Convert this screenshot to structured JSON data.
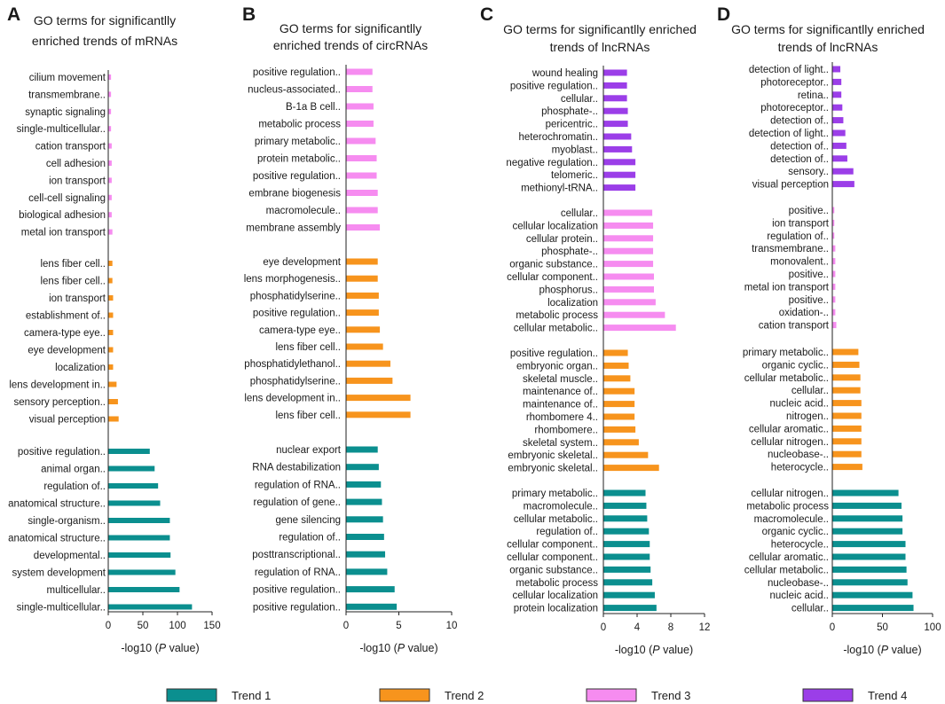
{
  "figure": {
    "legend": [
      {
        "name": "Trend 1",
        "color": "#0b8f8f"
      },
      {
        "name": "Trend 2",
        "color": "#f7941d"
      },
      {
        "name": "Trend 3",
        "color": "#f68cf0"
      },
      {
        "name": "Trend 4",
        "color": "#9b3ee8"
      }
    ]
  },
  "chart_data": [
    {
      "type": "bar",
      "orientation": "horizontal",
      "panel_label": "A",
      "title": [
        "GO terms for significantlly",
        "enriched trends of mRNAs"
      ],
      "xlabel_prefix": "-log10 (",
      "xlabel_italic": "P",
      "xlabel_suffix": " value)",
      "xlim": [
        0,
        150
      ],
      "xticks": [
        0,
        50,
        100,
        150
      ],
      "groups": [
        {
          "trend": "Trend 3",
          "color": "#f68cf0",
          "categories": [
            "cilium movement",
            "transmembrane..",
            "synaptic signaling",
            "single-multicellular..",
            "cation transport",
            "cell adhesion",
            "ion transport",
            "cell-cell signaling",
            "biological adhesion",
            "metal ion transport"
          ],
          "values": [
            4,
            4,
            4,
            4,
            5,
            5,
            5,
            5,
            5,
            6
          ]
        },
        {
          "trend": "Trend 2",
          "color": "#f7941d",
          "categories": [
            "lens fiber cell..",
            "lens fiber cell..",
            "ion transport",
            "establishment of..",
            "camera-type eye..",
            "eye development",
            "localization",
            "lens development in..",
            "sensory perception..",
            "visual perception"
          ],
          "values": [
            6,
            6,
            7,
            7,
            7,
            7,
            7,
            12,
            14,
            15
          ]
        },
        {
          "trend": "Trend 1",
          "color": "#0b8f8f",
          "categories": [
            "positive regulation..",
            "animal organ..",
            "regulation of..",
            "anatomical structure..",
            "single-organism..",
            "anatomical structure..",
            "developmental..",
            "system development",
            "multicellular..",
            "single-multicellular.."
          ],
          "values": [
            60,
            67,
            72,
            75,
            89,
            89,
            90,
            97,
            103,
            121
          ]
        }
      ]
    },
    {
      "type": "bar",
      "orientation": "horizontal",
      "panel_label": "B",
      "title": [
        "GO terms for significantlly",
        "enriched trends of circRNAs"
      ],
      "xlabel_prefix": "-log10 (",
      "xlabel_italic": "P",
      "xlabel_suffix": " value)",
      "xlim": [
        0,
        10
      ],
      "xticks": [
        0,
        5,
        10
      ],
      "groups": [
        {
          "trend": "Trend 3",
          "color": "#f68cf0",
          "categories": [
            "positive regulation..",
            "nucleus-associated..",
            "B-1a B cell..",
            "metabolic process",
            "primary metabolic..",
            "protein metabolic..",
            "positive regulation..",
            "embrane biogenesis",
            "macromolecule..",
            "membrane assembly"
          ],
          "values": [
            2.5,
            2.5,
            2.6,
            2.6,
            2.8,
            2.9,
            2.9,
            3.0,
            3.0,
            3.2
          ]
        },
        {
          "trend": "Trend 2",
          "color": "#f7941d",
          "categories": [
            "eye development",
            "lens morphogenesis..",
            "phosphatidylserine..",
            "positive regulation..",
            "camera-type eye..",
            "lens fiber cell..",
            "phosphatidylethanol..",
            "phosphatidylserine..",
            "lens development in..",
            "lens fiber cell.."
          ],
          "values": [
            3.0,
            3.0,
            3.1,
            3.1,
            3.2,
            3.5,
            4.2,
            4.4,
            6.1,
            6.1
          ]
        },
        {
          "trend": "Trend 1",
          "color": "#0b8f8f",
          "categories": [
            "nuclear export",
            "RNA destabilization",
            "regulation of RNA..",
            "regulation of gene..",
            "gene silencing",
            "regulation of..",
            "posttranscriptional..",
            "regulation of RNA..",
            "positive regulation..",
            "positive regulation.."
          ],
          "values": [
            3.0,
            3.1,
            3.3,
            3.4,
            3.5,
            3.6,
            3.7,
            3.9,
            4.6,
            4.8
          ]
        }
      ]
    },
    {
      "type": "bar",
      "orientation": "horizontal",
      "panel_label": "C",
      "title": [
        "GO terms for significantlly enriched",
        "trends of lncRNAs"
      ],
      "xlabel_prefix": "-log10 (",
      "xlabel_italic": "P",
      "xlabel_suffix": " value)",
      "xlim": [
        0,
        12
      ],
      "xticks": [
        0,
        4,
        8,
        12
      ],
      "groups": [
        {
          "trend": "Trend 4",
          "color": "#9b3ee8",
          "categories": [
            "wound healing",
            "positive regulation..",
            "cellular..",
            "phosphate-..",
            "pericentric..",
            "heterochromatin..",
            "myoblast..",
            "negative regulation..",
            "telomeric..",
            "methionyl-tRNA.."
          ],
          "values": [
            2.8,
            2.8,
            2.8,
            2.9,
            2.9,
            3.3,
            3.4,
            3.8,
            3.8,
            3.8
          ]
        },
        {
          "trend": "Trend 3",
          "color": "#f68cf0",
          "categories": [
            "cellular..",
            "cellular localization",
            "cellular protein..",
            "phosphate-..",
            "organic substance..",
            "cellular component..",
            "phosphorus..",
            "localization",
            "metabolic process",
            "cellular metabolic.."
          ],
          "values": [
            5.8,
            5.9,
            5.9,
            5.9,
            5.9,
            6.0,
            6.0,
            6.2,
            7.3,
            8.6
          ]
        },
        {
          "trend": "Trend 2",
          "color": "#f7941d",
          "categories": [
            "positive regulation..",
            "embryonic organ..",
            "skeletal muscle..",
            "maintenance of..",
            "maintenance of..",
            "rhombomere 4..",
            "rhombomere..",
            "skeletal system..",
            "embryonic skeletal..",
            "embryonic skeletal.."
          ],
          "values": [
            2.9,
            3.0,
            3.2,
            3.7,
            3.7,
            3.7,
            3.8,
            4.2,
            5.3,
            6.6
          ]
        },
        {
          "trend": "Trend 1",
          "color": "#0b8f8f",
          "categories": [
            "primary metabolic..",
            "macromolecule..",
            "cellular metabolic..",
            "regulation of..",
            "cellular component..",
            "cellular component..",
            "organic substance..",
            "metabolic process",
            "cellular localization",
            "protein localization"
          ],
          "values": [
            5.0,
            5.1,
            5.2,
            5.4,
            5.5,
            5.5,
            5.6,
            5.8,
            6.1,
            6.3
          ]
        }
      ]
    },
    {
      "type": "bar",
      "orientation": "horizontal",
      "panel_label": "D",
      "title": [
        "GO terms for significantlly enriched",
        "trends of lncRNAs"
      ],
      "xlabel_prefix": "-log10 (",
      "xlabel_italic": "P",
      "xlabel_suffix": " value)",
      "xlim": [
        0,
        100
      ],
      "xticks": [
        0,
        50,
        100
      ],
      "groups": [
        {
          "trend": "Trend 4",
          "color": "#9b3ee8",
          "categories": [
            "detection of light..",
            "photoreceptor..",
            "retina..",
            "photoreceptor..",
            "detection of..",
            "detection of light..",
            "detection of..",
            "detection of..",
            "sensory..",
            "visual perception"
          ],
          "values": [
            8,
            9,
            9,
            10,
            11,
            13,
            14,
            15,
            21,
            22
          ]
        },
        {
          "trend": "Trend 3",
          "color": "#f68cf0",
          "categories": [
            "positive..",
            "ion transport",
            "regulation of..",
            "transmembrane..",
            "monovalent..",
            "positive..",
            "metal ion transport",
            "positive..",
            "oxidation-..",
            "cation transport"
          ],
          "values": [
            2,
            2,
            2,
            3,
            3,
            3,
            3,
            3,
            3,
            4
          ]
        },
        {
          "trend": "Trend 2",
          "color": "#f7941d",
          "categories": [
            "primary metabolic..",
            "organic cyclic..",
            "cellular metabolic..",
            "cellular..",
            "nucleic acid..",
            "nitrogen..",
            "cellular aromatic..",
            "cellular nitrogen..",
            "nucleobase-..",
            "heterocycle.."
          ],
          "values": [
            26,
            27,
            28,
            28,
            29,
            29,
            29,
            29,
            29,
            30
          ]
        },
        {
          "trend": "Trend 1",
          "color": "#0b8f8f",
          "categories": [
            "cellular nitrogen..",
            "metabolic process",
            "macromolecule..",
            "organic cyclic..",
            "heterocycle..",
            "cellular aromatic..",
            "cellular metabolic..",
            "nucleobase-..",
            "nucleic acid..",
            "cellular.."
          ],
          "values": [
            66,
            69,
            70,
            70,
            73,
            73,
            74,
            75,
            80,
            81
          ]
        }
      ]
    }
  ]
}
